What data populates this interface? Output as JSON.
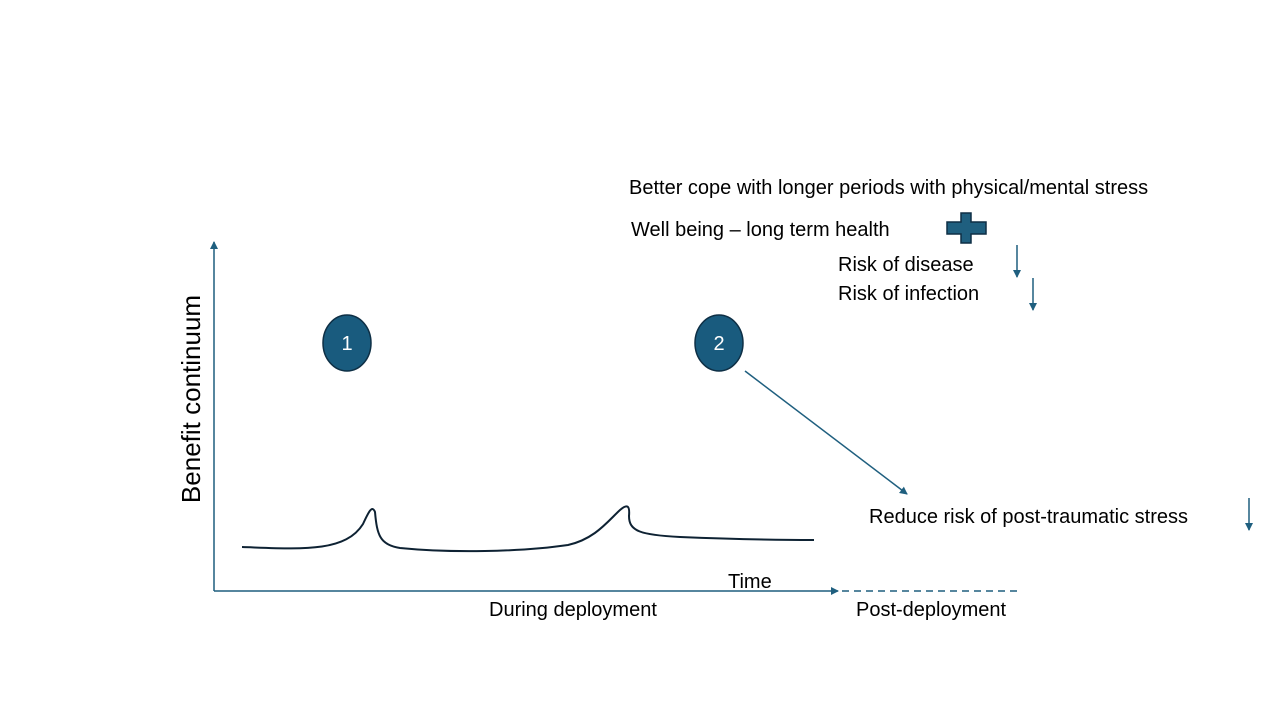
{
  "diagram": {
    "y_axis_label": "Benefit continuum",
    "x_axis_label": "Time",
    "phase_during": "During deployment",
    "phase_post": "Post-deployment",
    "marker_1": "1",
    "marker_2": "2",
    "benefit_stress_coping": "Better cope with longer periods with physical/mental stress",
    "benefit_wellbeing": "Well being – long term health",
    "risk_disease": "Risk of disease",
    "risk_infection": "Risk of infection",
    "risk_ptsd": "Reduce risk of post-traumatic stress",
    "colors": {
      "accent": "#1F5F7F",
      "marker_fill": "#195B7E",
      "marker_stroke": "#0E2F45",
      "curve": "#0E2233",
      "text": "#000000"
    },
    "icons": {
      "plus": "plus-icon",
      "down_arrow": "down-arrow-icon"
    }
  }
}
